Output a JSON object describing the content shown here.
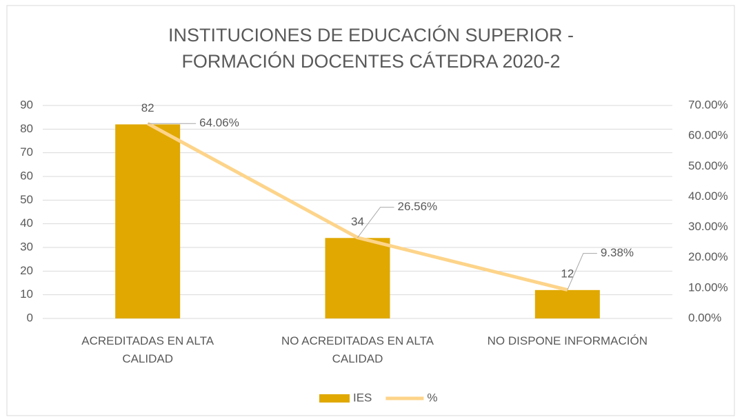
{
  "chart_data": {
    "type": "bar_line",
    "title": "INSTITUCIONES DE EDUCACIÓN SUPERIOR - FORMACIÓN DOCENTES CÁTEDRA 2020-2",
    "categories": [
      "ACREDITADAS EN ALTA CALIDAD",
      "NO ACREDITADAS EN ALTA CALIDAD",
      "NO DISPONE INFORMACIÓN"
    ],
    "series": [
      {
        "name": "IES",
        "type": "bar",
        "color": "#e0a800",
        "values": [
          82,
          34,
          12
        ]
      },
      {
        "name": "%",
        "type": "line",
        "axis": "y2",
        "color": "#fdd48a",
        "values": [
          64.06,
          26.56,
          9.38
        ],
        "value_labels": [
          "64.06%",
          "26.56%",
          "9.38%"
        ]
      }
    ],
    "ylim": [
      0,
      90
    ],
    "yticks": [
      0,
      10,
      20,
      30,
      40,
      50,
      60,
      70,
      80,
      90
    ],
    "y2lim": [
      0,
      70
    ],
    "y2ticks": [
      {
        "value": 0,
        "label": "0.00%"
      },
      {
        "value": 10,
        "label": "10.00%"
      },
      {
        "value": 20,
        "label": "20.00%"
      },
      {
        "value": 30,
        "label": "30.00%"
      },
      {
        "value": 40,
        "label": "40.00%"
      },
      {
        "value": 50,
        "label": "50.00%"
      },
      {
        "value": 60,
        "label": "60.00%"
      },
      {
        "value": 70,
        "label": "70.00%"
      }
    ],
    "grid": true,
    "legend": "bottom"
  }
}
